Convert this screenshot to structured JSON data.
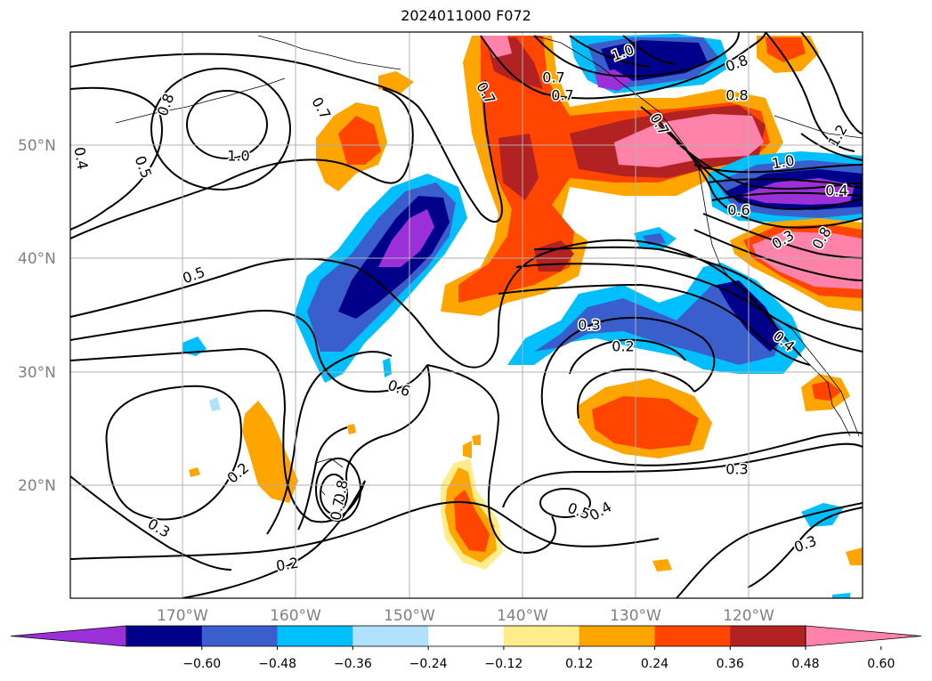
{
  "title": "2024011000 F072",
  "lat_labels": [
    "50°N",
    "40°N",
    "30°N",
    "20°N"
  ],
  "lon_labels": [
    "170°W",
    "160°W",
    "150°W",
    "140°W",
    "130°W",
    "120°W"
  ],
  "colorbar": {
    "ticks": [
      "−0.60",
      "−0.48",
      "−0.36",
      "−0.24",
      "−0.12",
      "0.12",
      "0.24",
      "0.36",
      "0.48",
      "0.60"
    ],
    "colors": [
      "#9b30d9",
      "#00008b",
      "#3a5fcd",
      "#00bfff",
      "#b0e2ff",
      "#ffffff",
      "#ffec8b",
      "#ffa500",
      "#ff4500",
      "#b22222",
      "#ff82ab"
    ]
  },
  "contour_labels": [
    "0.8",
    "0.7",
    "1.0",
    "0.5",
    "0.4",
    "0.5",
    "0.7",
    "0.8",
    "0.7",
    "0.7",
    "1.0",
    "0.8",
    "0.7",
    "1.2",
    "1.0",
    "0.6",
    "0.4",
    "0.3",
    "0.8",
    "0.3",
    "0.2",
    "0.4",
    "0.6",
    "0.2",
    "0.3",
    "0.2",
    "0.8",
    "0.7",
    "0.5",
    "0.4",
    "0.3",
    "0.3"
  ]
}
